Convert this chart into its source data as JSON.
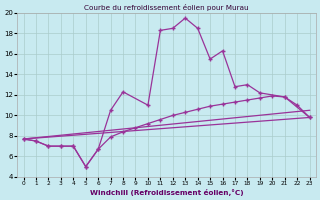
{
  "title": "Courbe du refroidissement éolien pour Murau",
  "xlabel": "Windchill (Refroidissement éolien,°C)",
  "bg_color": "#c8eaf0",
  "grid_color": "#aacccc",
  "line_color": "#993399",
  "xlim": [
    -0.5,
    23.5
  ],
  "ylim": [
    4,
    20
  ],
  "xticks": [
    0,
    1,
    2,
    3,
    4,
    5,
    6,
    7,
    8,
    9,
    10,
    11,
    12,
    13,
    14,
    15,
    16,
    17,
    18,
    19,
    20,
    21,
    22,
    23
  ],
  "yticks": [
    4,
    6,
    8,
    10,
    12,
    14,
    16,
    18,
    20
  ],
  "series1_x": [
    0,
    1,
    2,
    3,
    4,
    5,
    6,
    7,
    8,
    10,
    11,
    12,
    13,
    14,
    15,
    16,
    17,
    18,
    19,
    21,
    23
  ],
  "series1_y": [
    7.7,
    7.5,
    7.0,
    7.0,
    7.0,
    5.0,
    6.7,
    10.5,
    12.3,
    11.0,
    18.3,
    18.5,
    19.5,
    18.5,
    15.5,
    16.3,
    12.8,
    13.0,
    12.2,
    11.8,
    9.8
  ],
  "series2_x": [
    0,
    1,
    2,
    3,
    4,
    5,
    6,
    7,
    8,
    9,
    10,
    11,
    12,
    13,
    14,
    15,
    16,
    17,
    18,
    19,
    20,
    21,
    22,
    23
  ],
  "series2_y": [
    7.7,
    7.5,
    7.0,
    7.0,
    7.0,
    5.0,
    6.7,
    7.9,
    8.4,
    8.8,
    9.2,
    9.6,
    10.0,
    10.3,
    10.6,
    10.9,
    11.1,
    11.3,
    11.5,
    11.7,
    11.9,
    11.8,
    11.0,
    9.8
  ],
  "line3": [
    [
      0,
      7.7
    ],
    [
      23,
      9.8
    ]
  ],
  "line4": [
    [
      0,
      7.7
    ],
    [
      23,
      10.5
    ]
  ]
}
